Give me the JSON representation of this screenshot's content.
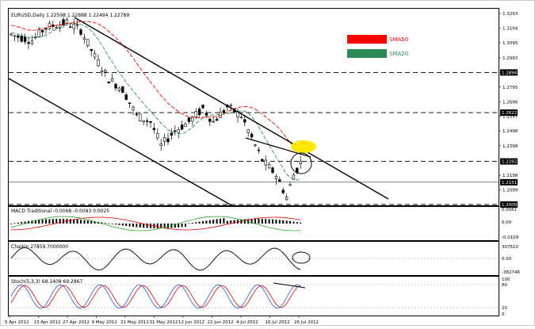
{
  "main_panel": {
    "header": "EURUSD,Daily  1.22598 1.22888 1.22494 1.22789",
    "price_ticks": [
      "1.3293",
      "1.3194",
      "1.3095",
      "1.2993",
      "1.2894",
      "1.2795",
      "1.2696",
      "1.2597",
      "1.2498",
      "1.2398",
      "1.2198",
      "1.2099"
    ],
    "level_labels": [
      "1.2894",
      "1.2622",
      "1.2292",
      "1.2151",
      "1.2000"
    ],
    "legend": [
      {
        "label": "SMA50",
        "color": "#ff0000"
      },
      {
        "label": "SMA20",
        "color": "#2e8b57"
      }
    ],
    "highlight_color": "#ffe800"
  },
  "macd_panel": {
    "header": "MACD Traditional -0.0068 -0.0093 0.0025",
    "ticks": [
      "0.0061",
      "0.00",
      "-0.0109"
    ]
  },
  "chaikin_panel": {
    "header": "Chaikin 27859.7000000",
    "ticks": [
      "307610",
      "0.00",
      "-382746"
    ]
  },
  "stoch_panel": {
    "header": "Stoch(5,3,3) 68.1408 69.2867",
    "ticks": [
      "100",
      "80",
      "20",
      "0"
    ]
  },
  "time_axis": {
    "labels": [
      "5 Apr 2012",
      "13 Apr 2012",
      "27 Apr 2012",
      "9 May 2012",
      "21 May 2012",
      "31 May 2012",
      "12 Jun 2012",
      "22 Jun 2012",
      "4 Jul 2012",
      "16 Jul 2012",
      "26 Jul 2012"
    ]
  },
  "chart_data": [
    {
      "type": "candlestick",
      "title": "EURUSD,Daily",
      "ylim": [
        1.2,
        1.332
      ],
      "overlays": [
        "SMA50",
        "SMA20"
      ],
      "ohlc_last": {
        "open": 1.22598,
        "high": 1.22888,
        "low": 1.22494,
        "close": 1.22789
      },
      "horizontal_levels": [
        1.2894,
        1.2622,
        1.2292,
        1.2151,
        1.2
      ],
      "legend_position": "top-right",
      "grid": false
    },
    {
      "type": "bar",
      "title": "MACD Traditional",
      "values_shown": [
        -0.0068,
        -0.0093,
        0.0025
      ],
      "ylim": [
        -0.0109,
        0.0061
      ]
    },
    {
      "type": "line",
      "title": "Chaikin",
      "value_shown": 27859.7,
      "ylim": [
        -382746,
        307610
      ]
    },
    {
      "type": "line",
      "title": "Stoch(5,3,3)",
      "values_shown": [
        68.1408,
        69.2867
      ],
      "ylim": [
        0,
        100
      ],
      "levels": [
        80,
        20
      ]
    }
  ]
}
